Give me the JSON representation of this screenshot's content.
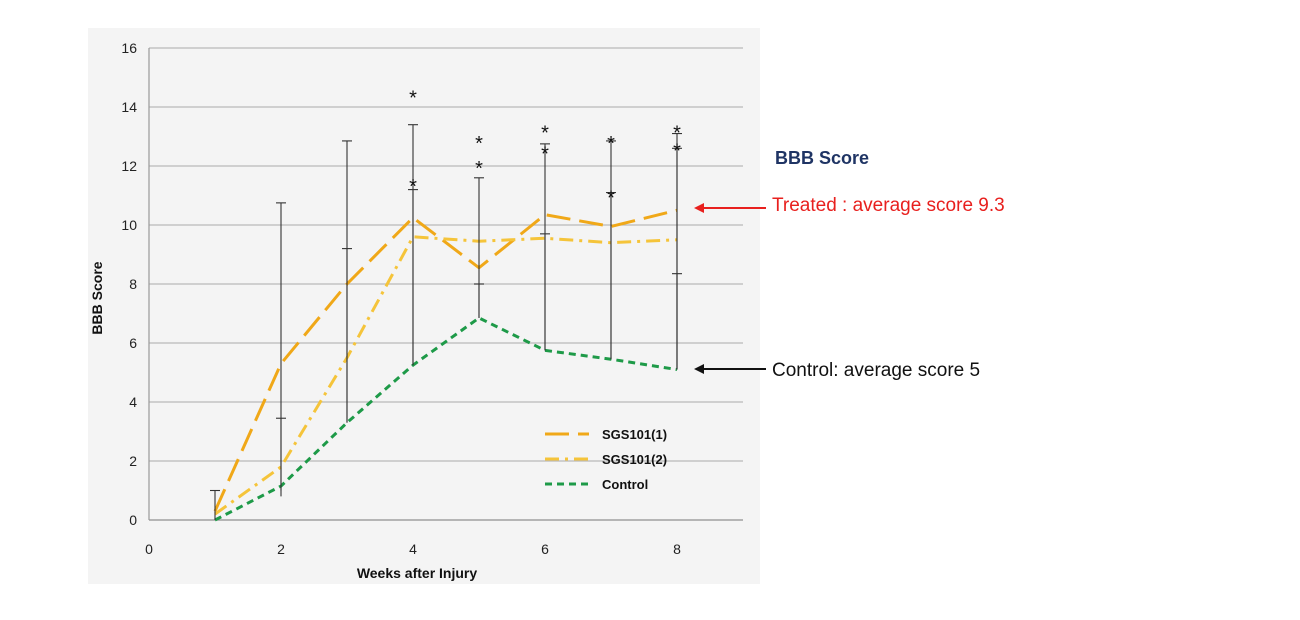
{
  "chart_data": {
    "type": "line",
    "xlabel": "Weeks after Injury",
    "ylabel": "BBB Score",
    "xlim": [
      0,
      9
    ],
    "ylim": [
      0,
      16
    ],
    "xticks": [
      0,
      2,
      4,
      6,
      8
    ],
    "yticks": [
      0,
      2,
      4,
      6,
      8,
      10,
      12,
      14,
      16
    ],
    "grid": "horizontal",
    "legend_position": "bottom-right",
    "series": [
      {
        "name": "SGS101(1)",
        "color": "#f0a818",
        "dash": "long-dash",
        "x": [
          1,
          2,
          3,
          4,
          5,
          6,
          7,
          8
        ],
        "y": [
          0.3,
          5.3,
          8.0,
          10.25,
          8.55,
          10.35,
          9.95,
          10.5
        ]
      },
      {
        "name": "SGS101(2)",
        "color": "#f5c43a",
        "dash": "dash-dot",
        "x": [
          1,
          2,
          3,
          4,
          5,
          6,
          7,
          8
        ],
        "y": [
          0.2,
          1.8,
          5.5,
          9.6,
          9.45,
          9.55,
          9.4,
          9.5
        ]
      },
      {
        "name": "Control",
        "color": "#1e9a48",
        "dash": "short-dash",
        "x": [
          1,
          2,
          3,
          4,
          5,
          6,
          7,
          8
        ],
        "y": [
          0.0,
          1.15,
          3.3,
          5.25,
          6.85,
          5.75,
          5.45,
          5.1
        ]
      }
    ],
    "error_bars": [
      {
        "x": 1,
        "low": 0.0,
        "high": 1.0
      },
      {
        "x": 2,
        "low": 0.8,
        "high": 10.75
      },
      {
        "x": 2,
        "low": 1.0,
        "high": 3.45
      },
      {
        "x": 3,
        "low": 3.3,
        "high": 12.85
      },
      {
        "x": 3,
        "low": 3.3,
        "high": 9.2
      },
      {
        "x": 4,
        "low": 5.25,
        "high": 13.4
      },
      {
        "x": 4,
        "low": 5.25,
        "high": 11.2
      },
      {
        "x": 5,
        "low": 6.85,
        "high": 11.6
      },
      {
        "x": 5,
        "low": 6.85,
        "high": 8.0
      },
      {
        "x": 6,
        "low": 5.75,
        "high": 12.75
      },
      {
        "x": 6,
        "low": 5.75,
        "high": 9.7
      },
      {
        "x": 7,
        "low": 5.45,
        "high": 12.85
      },
      {
        "x": 7,
        "low": 5.45,
        "high": 11.1
      },
      {
        "x": 8,
        "low": 5.1,
        "high": 13.1
      },
      {
        "x": 8,
        "low": 5.1,
        "high": 12.6
      },
      {
        "x": 8,
        "low": 5.1,
        "high": 8.35
      }
    ],
    "significance_markers": [
      {
        "x": 4,
        "y": 14.5,
        "text": "*"
      },
      {
        "x": 4,
        "y": 11.5,
        "text": "*"
      },
      {
        "x": 5,
        "y": 12.95,
        "text": "*"
      },
      {
        "x": 5,
        "y": 12.1,
        "text": "*"
      },
      {
        "x": 6,
        "y": 13.3,
        "text": "*"
      },
      {
        "x": 6,
        "y": 12.6,
        "text": "*"
      },
      {
        "x": 7,
        "y": 12.95,
        "text": "*"
      },
      {
        "x": 7,
        "y": 11.1,
        "text": "*"
      },
      {
        "x": 8,
        "y": 13.3,
        "text": "*"
      },
      {
        "x": 8,
        "y": 12.7,
        "text": "*"
      }
    ]
  },
  "annotations": {
    "title": "BBB Score",
    "treated": "Treated : average score 9.3",
    "control": "Control:  average score 5",
    "treated_color": "#e8201e",
    "control_color": "#111111",
    "title_color": "#1f3464"
  }
}
